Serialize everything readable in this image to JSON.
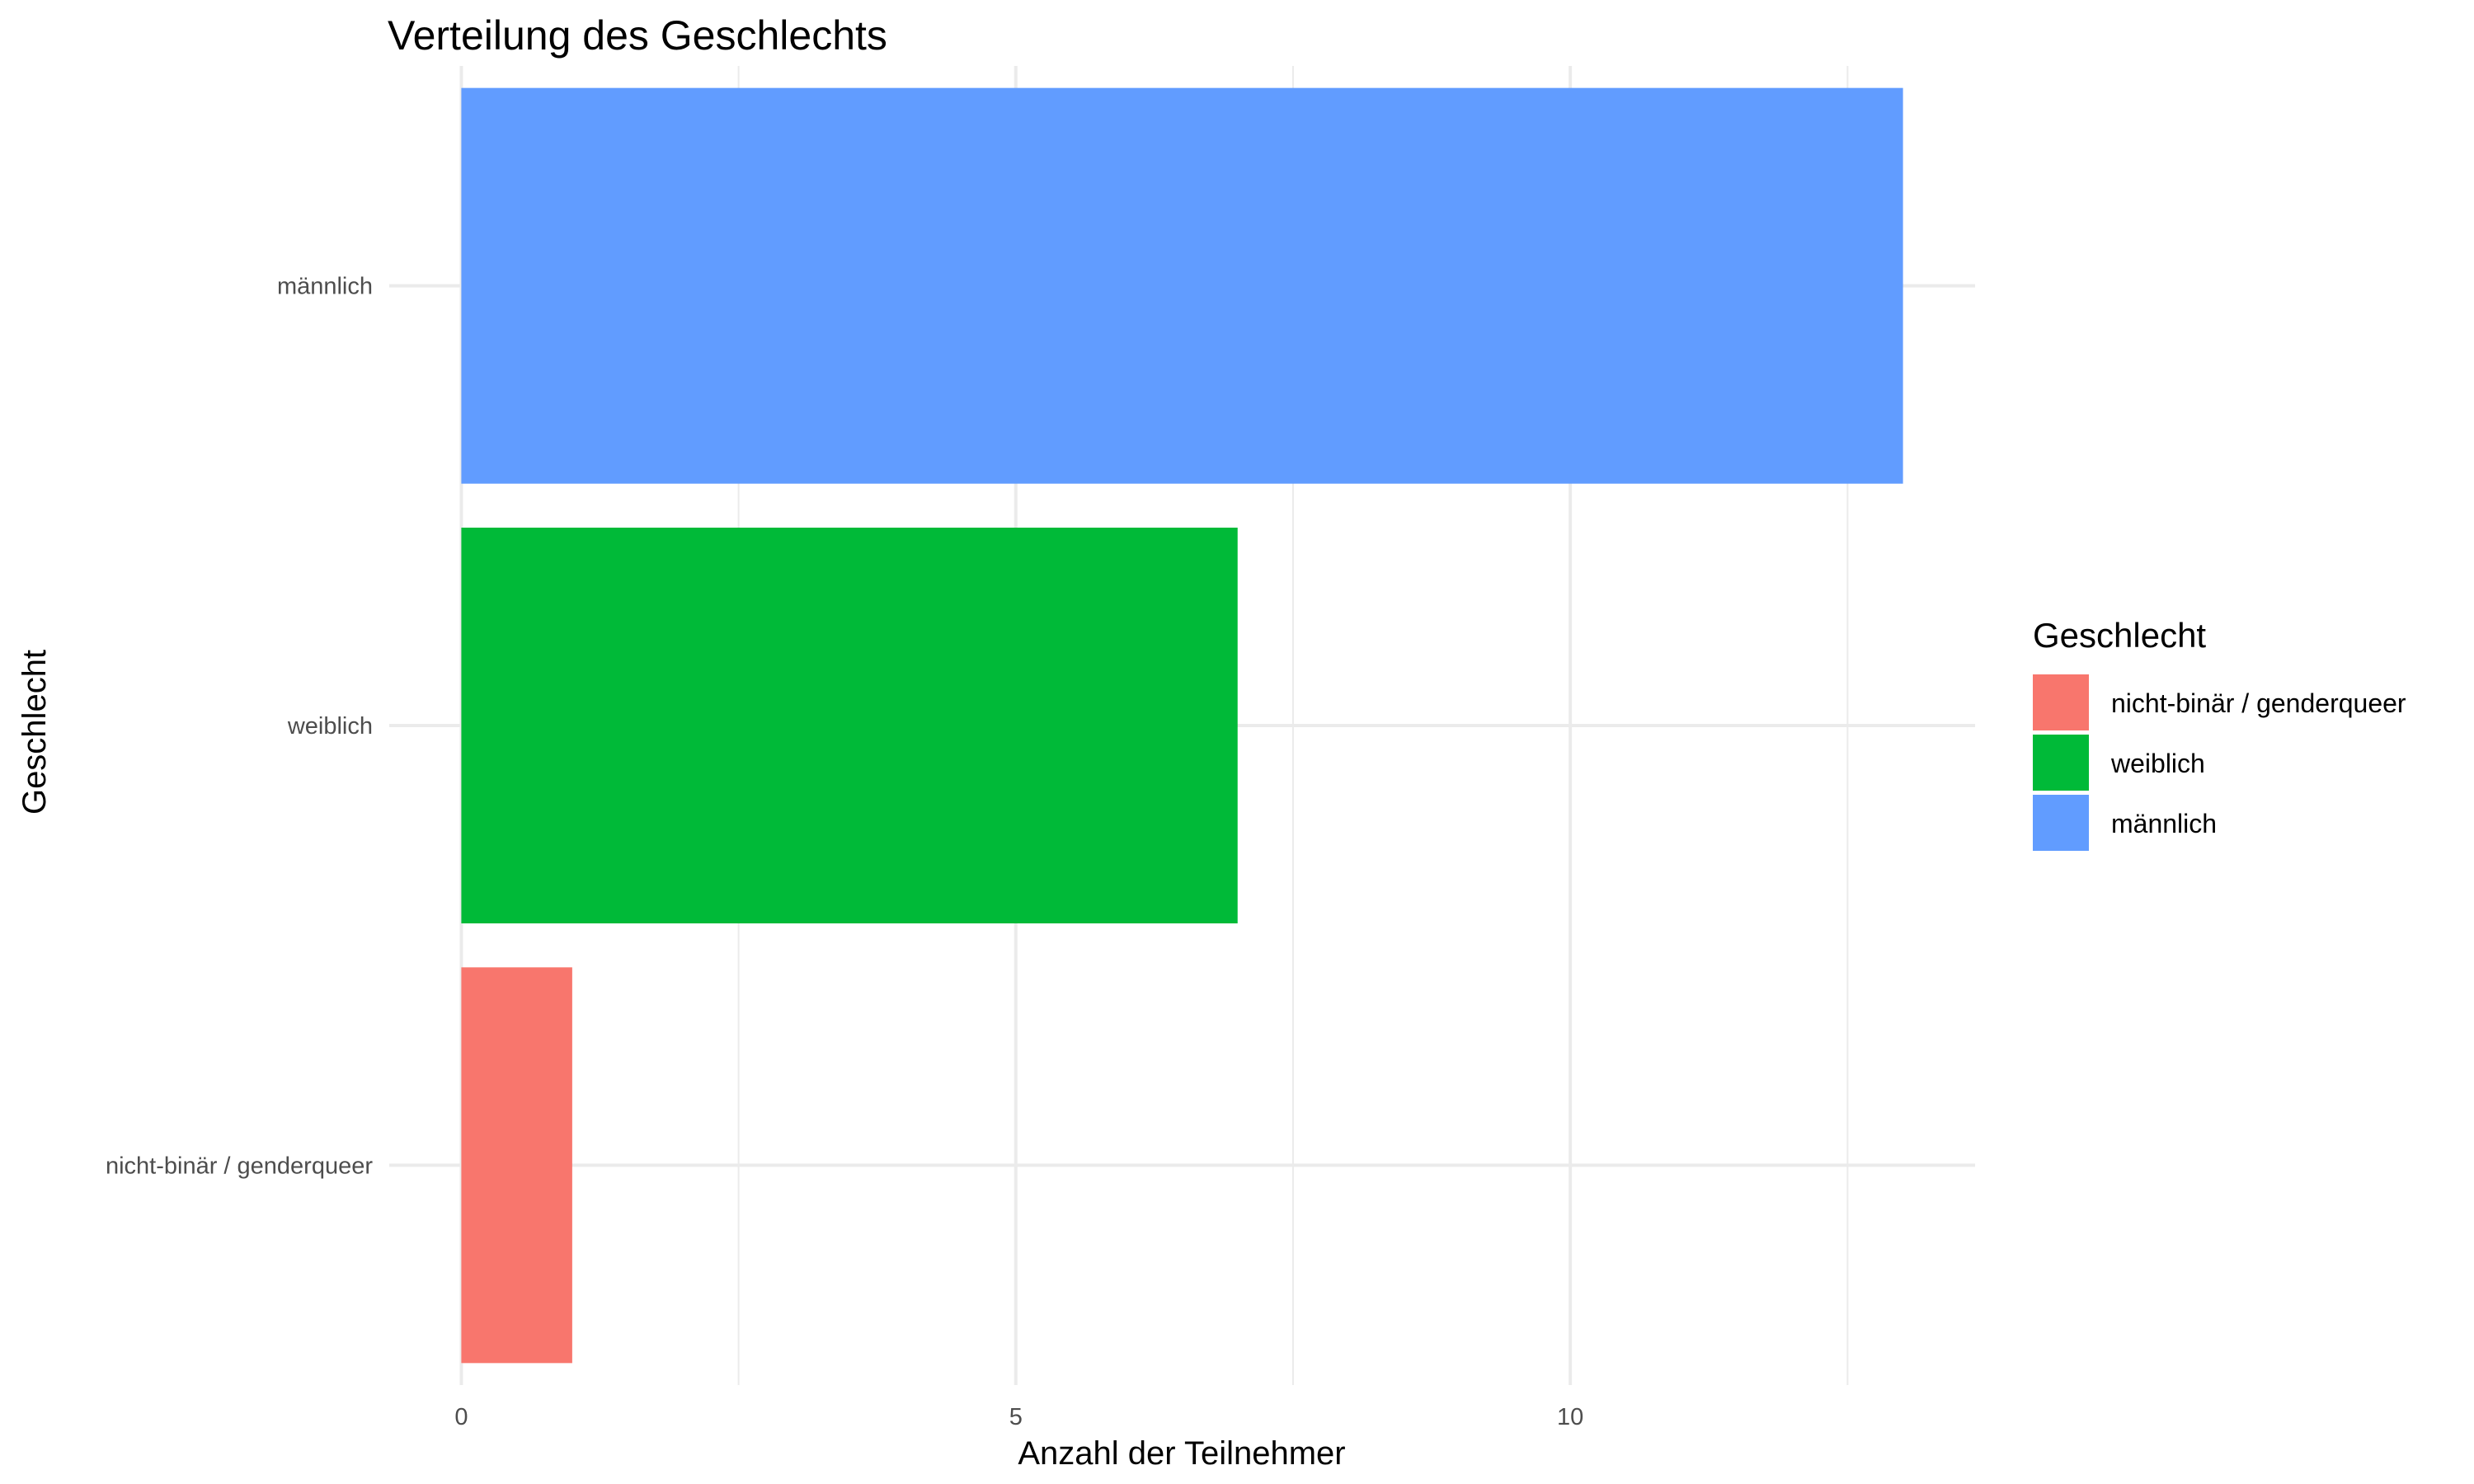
{
  "chart_data": {
    "type": "bar",
    "orientation": "horizontal",
    "title": "Verteilung des Geschlechts",
    "xlabel": "Anzahl der Teilnehmer",
    "ylabel": "Geschlecht",
    "xlim": [
      -0.65,
      13.65
    ],
    "x_ticks": [
      0,
      5,
      10
    ],
    "x_minor_ticks": [
      2.5,
      7.5,
      12.5
    ],
    "grid": true,
    "categories": [
      "nicht-binär / genderqueer",
      "weiblich",
      "männlich"
    ],
    "values": [
      1,
      7,
      13
    ],
    "colors": [
      "#F8766D",
      "#00BA38",
      "#619CFF"
    ],
    "legend": {
      "title": "Geschlecht",
      "position": "right",
      "entries": [
        {
          "label": "nicht-binär / genderqueer",
          "color": "#F8766D"
        },
        {
          "label": "weiblich",
          "color": "#00BA38"
        },
        {
          "label": "männlich",
          "color": "#619CFF"
        }
      ]
    }
  }
}
